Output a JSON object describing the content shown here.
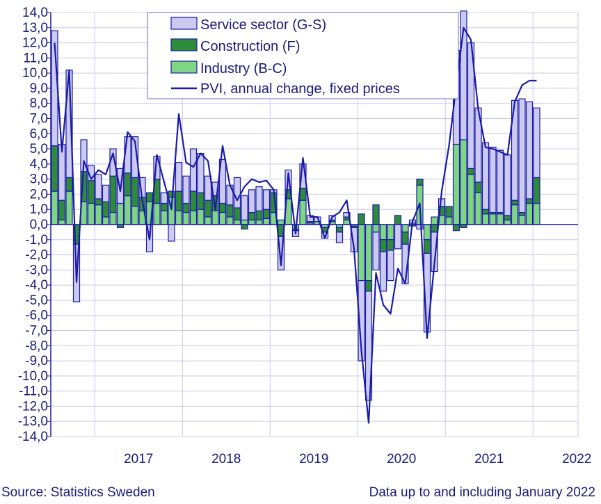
{
  "chart_data": {
    "type": "bar",
    "stacked": true,
    "title": "",
    "xlabel": "",
    "ylabel": "",
    "ylim": [
      -14,
      14
    ],
    "yticks": [
      "14,0",
      "13,0",
      "12,0",
      "11,0",
      "10,0",
      "9,0",
      "8,0",
      "7,0",
      "6,0",
      "5,0",
      "4,0",
      "3,0",
      "2,0",
      "1,0",
      "0,0",
      "-1,0",
      "-2,0",
      "-3,0",
      "-4,0",
      "-5,0",
      "-6,0",
      "-7,0",
      "-8,0",
      "-9,0",
      "-10,0",
      "-11,0",
      "-12,0",
      "-13,0",
      "-14,0"
    ],
    "year_labels": [
      "2017",
      "2018",
      "2019",
      "2020",
      "2021",
      "2022"
    ],
    "grid": true,
    "legend_position": "top-center",
    "x": [
      "2016-07",
      "2016-08",
      "2016-09",
      "2016-10",
      "2016-11",
      "2016-12",
      "2017-01",
      "2017-02",
      "2017-03",
      "2017-04",
      "2017-05",
      "2017-06",
      "2017-07",
      "2017-08",
      "2017-09",
      "2017-10",
      "2017-11",
      "2017-12",
      "2018-01",
      "2018-02",
      "2018-03",
      "2018-04",
      "2018-05",
      "2018-06",
      "2018-07",
      "2018-08",
      "2018-09",
      "2018-10",
      "2018-11",
      "2018-12",
      "2019-01",
      "2019-02",
      "2019-03",
      "2019-04",
      "2019-05",
      "2019-06",
      "2019-07",
      "2019-08",
      "2019-09",
      "2019-10",
      "2019-11",
      "2019-12",
      "2020-01",
      "2020-02",
      "2020-03",
      "2020-04",
      "2020-05",
      "2020-06",
      "2020-07",
      "2020-08",
      "2020-09",
      "2020-10",
      "2020-11",
      "2020-12",
      "2021-01",
      "2021-02",
      "2021-03",
      "2021-04",
      "2021-05",
      "2021-06",
      "2021-07",
      "2021-08",
      "2021-09",
      "2021-10",
      "2021-11",
      "2021-12",
      "2022-01"
    ],
    "series": [
      {
        "name": "Service sector (G-S)",
        "color": "#cccaf0",
        "values": [
          7.6,
          3.7,
          7.1,
          -3.8,
          2.1,
          1.0,
          1.6,
          1.1,
          1.8,
          2.3,
          2.4,
          2.7,
          1.3,
          -1.8,
          1.5,
          0.7,
          -1.1,
          1.9,
          1.8,
          2.8,
          2.6,
          1.6,
          0.9,
          2.9,
          1.3,
          2.0,
          1.6,
          1.5,
          1.6,
          1.3,
          0.2,
          -2.2,
          1.3,
          -0.4,
          1.6,
          0.4,
          0.3,
          -0.4,
          0.3,
          -0.7,
          0.3,
          -1.6,
          -5.3,
          -7.2,
          -2.5,
          -2.6,
          -2.0,
          -1.6,
          -2.6,
          0.2,
          -0.3,
          -5.2,
          -2.6,
          0.5,
          0.0,
          6.2,
          8.5,
          8.3,
          4.9,
          4.4,
          4.3,
          4.1,
          4.0,
          6.6,
          7.5,
          6.4,
          4.6
        ]
      },
      {
        "name": "Construction (F)",
        "color": "#2e8b3a",
        "values": [
          3.0,
          1.3,
          0.9,
          -1.3,
          2.0,
          1.5,
          0.4,
          1.0,
          2.4,
          -0.2,
          1.5,
          1.9,
          0.9,
          0.6,
          1.6,
          0.5,
          0.4,
          1.3,
          0.6,
          1.3,
          1.1,
          1.1,
          1.0,
          0.6,
          0.8,
          0.8,
          -0.3,
          0.5,
          0.6,
          0.6,
          1.3,
          -0.8,
          0.6,
          -0.1,
          0.8,
          0.1,
          0.0,
          -0.3,
          0.1,
          -0.3,
          0.2,
          -0.1,
          0.7,
          -0.7,
          1.3,
          -0.8,
          -0.7,
          0.6,
          -0.8,
          -0.1,
          0.4,
          -0.9,
          -0.5,
          0.6,
          0.7,
          -0.4,
          -0.2,
          0.4,
          0.7,
          0.3,
          0.1,
          0.1,
          0.3,
          0.3,
          0.2,
          0.3,
          1.7
        ]
      },
      {
        "name": "Industry (B-C)",
        "color": "#7ed584",
        "values": [
          2.2,
          0.3,
          2.2,
          0.0,
          1.5,
          1.4,
          1.3,
          0.5,
          0.8,
          1.4,
          1.9,
          1.2,
          0.9,
          1.5,
          1.4,
          0.9,
          1.8,
          0.9,
          0.8,
          0.9,
          1.0,
          0.5,
          0.9,
          0.8,
          0.5,
          0.3,
          0.3,
          0.3,
          0.3,
          0.4,
          0.8,
          0.3,
          1.7,
          -0.3,
          1.6,
          0.1,
          0.2,
          -0.2,
          0.2,
          -0.2,
          0.3,
          -0.1,
          -3.7,
          -3.7,
          -0.5,
          -1.0,
          -1.0,
          0.0,
          -0.5,
          0.1,
          2.6,
          -1.0,
          0.5,
          0.6,
          0.5,
          5.3,
          5.6,
          3.3,
          2.1,
          0.7,
          0.7,
          0.7,
          0.3,
          1.3,
          0.6,
          1.4,
          1.4
        ]
      },
      {
        "name": "PVI, annual change, fixed prices",
        "color": "#1a1aa8",
        "type": "line",
        "values": [
          12.0,
          4.8,
          10.2,
          -3.8,
          4.2,
          3.0,
          3.6,
          3.3,
          4.7,
          2.2,
          6.1,
          5.5,
          1.6,
          -1.0,
          4.6,
          2.8,
          1.0,
          7.3,
          4.1,
          3.8,
          4.7,
          4.2,
          1.0,
          5.2,
          2.6,
          1.6,
          2.5,
          3.0,
          2.8,
          2.9,
          2.3,
          -2.7,
          3.4,
          -0.6,
          4.4,
          0.5,
          0.5,
          -0.9,
          0.5,
          0.8,
          1.6,
          -1.6,
          -8.3,
          -13.1,
          -3.2,
          -5.3,
          -5.9,
          -2.9,
          -3.9,
          0.2,
          1.4,
          -7.5,
          -2.6,
          2.2,
          5.2,
          9.2,
          13.0,
          12.2,
          7.6,
          5.1,
          5.0,
          4.8,
          4.6,
          8.1,
          9.2,
          9.5,
          9.5
        ]
      }
    ]
  },
  "footer": {
    "source": "Source: Statistics Sweden",
    "data_note": "Data up to and including January 2022"
  }
}
